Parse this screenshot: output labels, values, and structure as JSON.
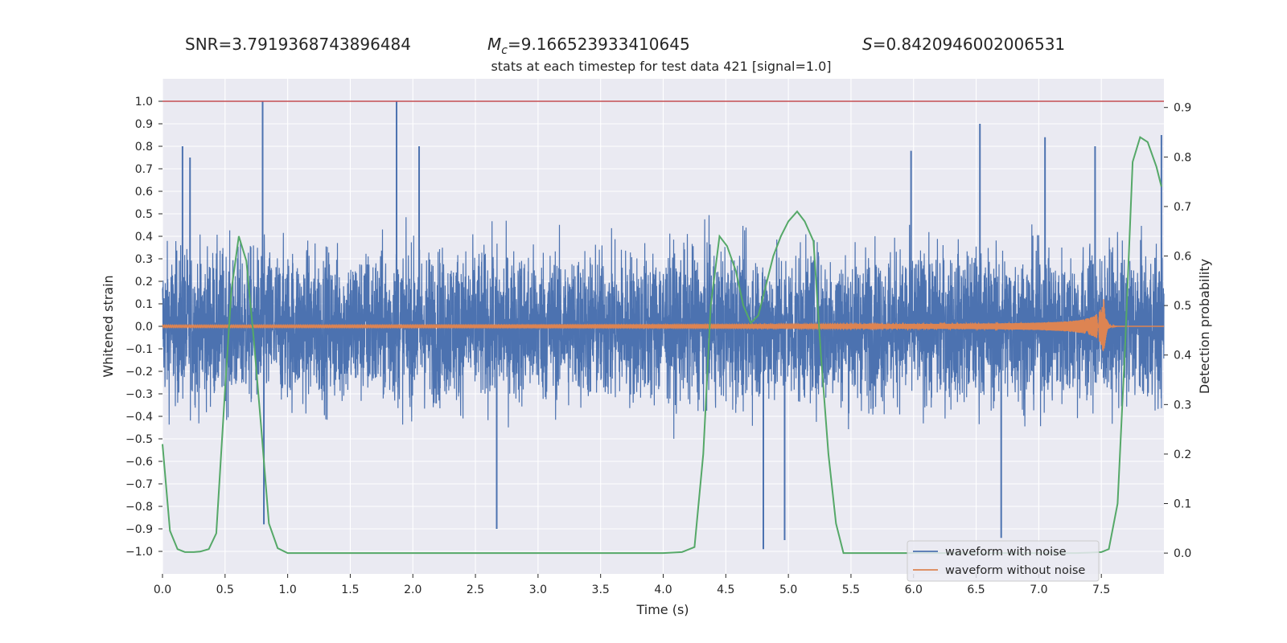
{
  "chart_data": {
    "type": "line",
    "stats": {
      "snr_label": "SNR=3.7919368743896484",
      "mc_symbol": "M",
      "mc_subscript": "c",
      "mc_value": "=9.166523933410645",
      "s_symbol": "S",
      "s_value": "=0.8420946002006531"
    },
    "title": "stats at each timestep for test data 421 [signal=1.0]",
    "xlabel": "Time (s)",
    "ylabel": "Whitened strain",
    "ylabel_right": "Detection probability",
    "xlim": [
      0,
      8
    ],
    "ylim": [
      -1.1,
      1.1
    ],
    "ylim_right": [
      -0.042,
      0.958
    ],
    "x_ticks": [
      "0.0",
      "0.5",
      "1.0",
      "1.5",
      "2.0",
      "2.5",
      "3.0",
      "3.5",
      "4.0",
      "4.5",
      "5.0",
      "5.5",
      "6.0",
      "6.5",
      "7.0",
      "7.5"
    ],
    "y_ticks": [
      "1.0",
      "0.9",
      "0.8",
      "0.7",
      "0.6",
      "0.5",
      "0.4",
      "0.3",
      "0.2",
      "0.1",
      "0.0",
      "−0.1",
      "−0.2",
      "−0.3",
      "−0.4",
      "−0.5",
      "−0.6",
      "−0.7",
      "−0.8",
      "−0.9",
      "−1.0"
    ],
    "y_ticks_right": [
      "0.9",
      "0.8",
      "0.7",
      "0.6",
      "0.5",
      "0.4",
      "0.3",
      "0.2",
      "0.1",
      "0.0"
    ],
    "threshold_line": 1.0,
    "grid": true,
    "legend_position": "lower-right",
    "colors": {
      "noisy": "#4c72b0",
      "clean": "#dd8452",
      "probability": "#55a868",
      "threshold": "#c44e52",
      "plot_bg": "#eaeaf2",
      "grid": "#ffffff"
    },
    "series": [
      {
        "name": "waveform with noise",
        "description_points": "dense whitened strain noise, envelope roughly ±0.45 with spikes",
        "spikes": [
          [
            0.16,
            0.8
          ],
          [
            0.22,
            0.75
          ],
          [
            0.8,
            1.0
          ],
          [
            0.81,
            -0.88
          ],
          [
            1.87,
            1.0
          ],
          [
            2.05,
            0.8
          ],
          [
            2.67,
            -0.9
          ],
          [
            4.8,
            -0.99
          ],
          [
            4.97,
            -0.95
          ],
          [
            6.7,
            -0.94
          ],
          [
            5.98,
            0.78
          ],
          [
            6.53,
            0.9
          ],
          [
            7.05,
            0.84
          ],
          [
            7.45,
            0.8
          ],
          [
            7.98,
            0.85
          ]
        ]
      },
      {
        "name": "waveform without noise",
        "chirp_end_x": 7.52,
        "peak_amplitude": 0.13
      },
      {
        "name": "Detection probability",
        "axis": "right",
        "x": [
          0.0,
          0.06,
          0.12,
          0.18,
          0.25,
          0.3,
          0.37,
          0.43,
          0.5,
          0.55,
          0.61,
          0.67,
          0.73,
          0.79,
          0.85,
          0.92,
          1.0,
          1.5,
          2.0,
          2.5,
          3.0,
          3.5,
          4.0,
          4.15,
          4.25,
          4.32,
          4.38,
          4.45,
          4.51,
          4.58,
          4.64,
          4.7,
          4.76,
          4.82,
          4.88,
          4.94,
          5.0,
          5.07,
          5.13,
          5.2,
          5.26,
          5.32,
          5.38,
          5.44,
          5.5,
          6.0,
          6.5,
          7.0,
          7.3,
          7.42,
          7.5,
          7.56,
          7.63,
          7.69,
          7.75,
          7.81,
          7.87,
          7.94,
          7.98
        ],
        "values": [
          0.22,
          0.045,
          0.008,
          0.002,
          0.002,
          0.003,
          0.008,
          0.04,
          0.33,
          0.53,
          0.64,
          0.59,
          0.43,
          0.25,
          0.06,
          0.01,
          0.0,
          0.0,
          0.0,
          0.0,
          0.0,
          0.0,
          0.0,
          0.002,
          0.012,
          0.2,
          0.5,
          0.64,
          0.62,
          0.57,
          0.5,
          0.465,
          0.48,
          0.54,
          0.6,
          0.64,
          0.67,
          0.69,
          0.67,
          0.63,
          0.4,
          0.2,
          0.06,
          0.0,
          0.0,
          0.0,
          0.0,
          0.0,
          0.0,
          0.001,
          0.002,
          0.008,
          0.1,
          0.42,
          0.79,
          0.84,
          0.83,
          0.78,
          0.74
        ]
      }
    ]
  }
}
